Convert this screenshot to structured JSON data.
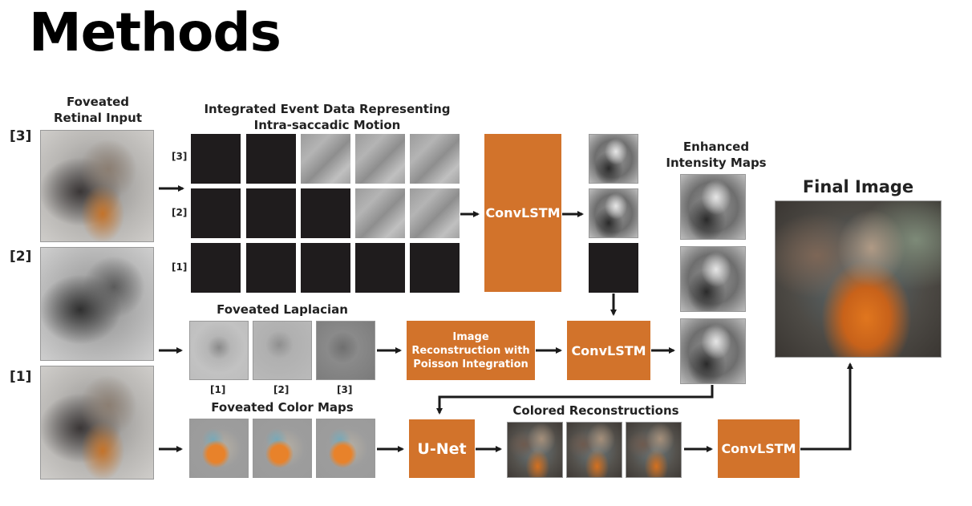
{
  "title": "Methods",
  "labels": {
    "retinal_input": "Foveated\nRetinal Input",
    "event_data": "Integrated Event Data Representing\nIntra-saccadic Motion",
    "laplacian": "Foveated Laplacian",
    "color_maps": "Foveated Color Maps",
    "enhanced": "Enhanced\nIntensity Maps",
    "colored_recon": "Colored Reconstructions",
    "final_image": "Final Image"
  },
  "scale_indices": {
    "big": [
      "[3]",
      "[2]",
      "[1]"
    ],
    "small": [
      "[3]",
      "[2]",
      "[1]"
    ],
    "laplacian": [
      "[1]",
      "[2]",
      "[3]"
    ]
  },
  "boxes": {
    "convlstm_main": "ConvLSTM",
    "reconstruction": "Image\nReconstruction with\nPoisson Integration",
    "convlstm_mid": "ConvLSTM",
    "unet": "U-Net",
    "convlstm_final": "ConvLSTM"
  },
  "colors": {
    "box": "#d2732b",
    "arrow": "#1a1a1a",
    "black_frame": "#1f1c1d"
  }
}
